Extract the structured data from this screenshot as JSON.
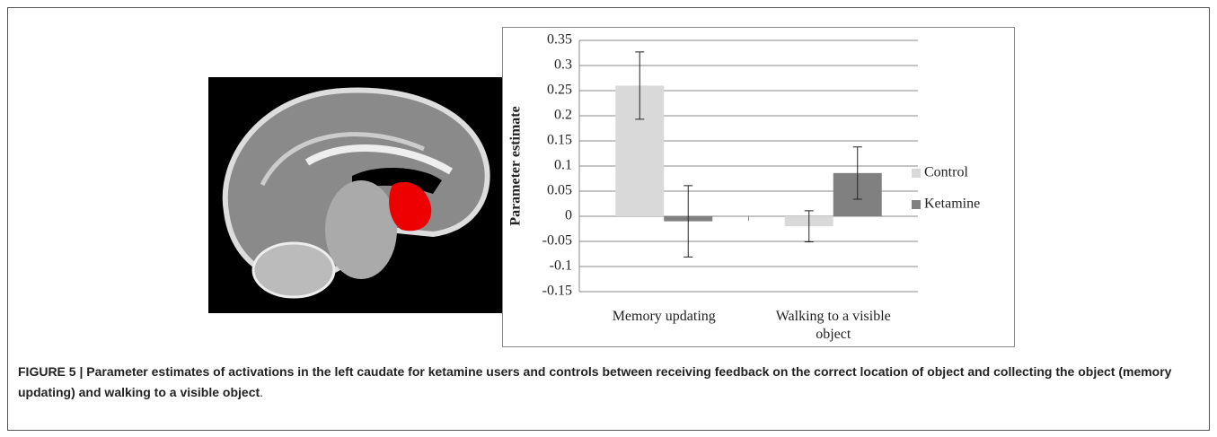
{
  "chart_data": {
    "type": "bar",
    "y_label": "Parameter estimate",
    "categories": [
      "Memory updating",
      "Walking to a visible object"
    ],
    "series": [
      {
        "name": "Control",
        "color": "#d9d9d9",
        "values": [
          0.26,
          -0.02
        ],
        "errors": [
          0.067,
          0.031
        ]
      },
      {
        "name": "Ketamine",
        "color": "#808080",
        "values": [
          -0.01,
          0.086
        ],
        "errors": [
          0.071,
          0.052
        ]
      }
    ],
    "ylim": [
      -0.15,
      0.35
    ],
    "yticks": [
      0.35,
      0.3,
      0.25,
      0.2,
      0.15,
      0.1,
      0.05,
      0,
      -0.05,
      -0.1,
      -0.15
    ],
    "grid": true,
    "legend": "right"
  },
  "caption": {
    "bold": "FIGURE 5 | Parameter estimates of activations in the left caudate for ketamine users and controls between receiving feedback on the correct location of object and collecting the object (memory updating) and walking to a visible object",
    "tail": "."
  }
}
